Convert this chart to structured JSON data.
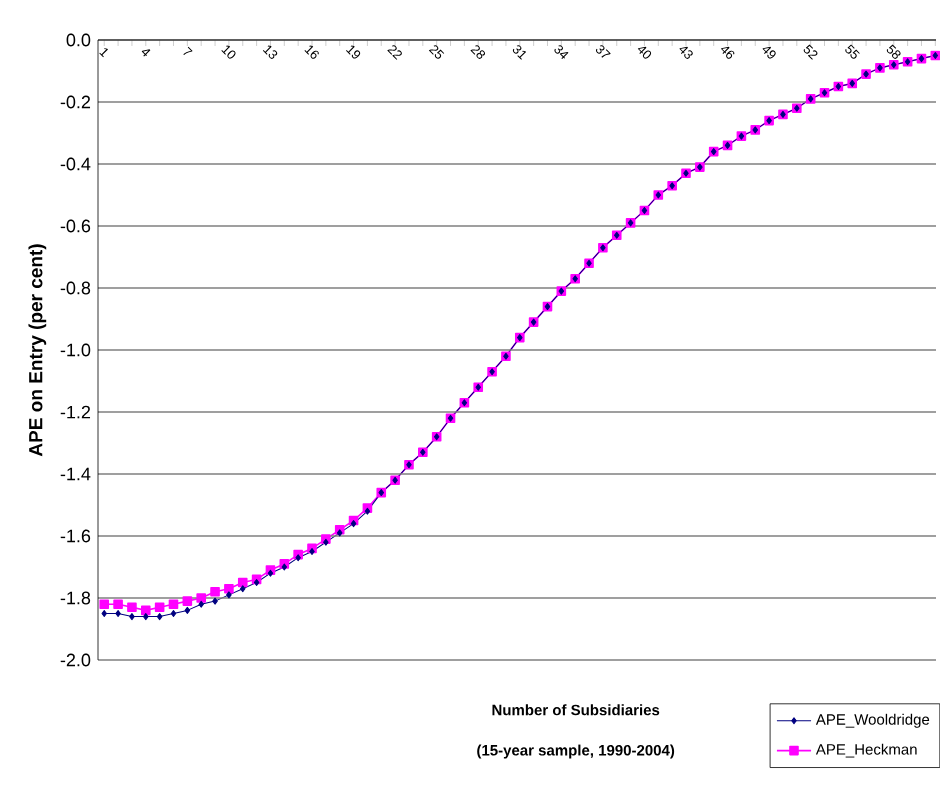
{
  "chart_data": {
    "type": "line",
    "xlabel": "Number of Subsidiaries",
    "ylabel": "APE on Entry (per cent)",
    "annotations": [
      "(15-year sample, 1990-2004)"
    ],
    "categories": [
      "1",
      null,
      null,
      "4",
      null,
      null,
      "7",
      null,
      null,
      "10",
      null,
      null,
      "13",
      null,
      null,
      "16",
      null,
      null,
      "19",
      null,
      null,
      "22",
      null,
      null,
      "25",
      null,
      null,
      "28",
      null,
      null,
      "31",
      null,
      null,
      "34",
      null,
      null,
      "37",
      null,
      null,
      "40",
      null,
      null,
      "43",
      null,
      null,
      "46",
      null,
      null,
      "49",
      null,
      null,
      "52",
      null,
      null,
      "55",
      null,
      null,
      "58",
      null,
      null,
      null
    ],
    "series": [
      {
        "name": "APE_Wooldridge",
        "color": "#000080",
        "marker": "diamond",
        "values": [
          -1.85,
          -1.85,
          -1.86,
          -1.86,
          -1.86,
          -1.85,
          -1.84,
          -1.82,
          -1.81,
          -1.79,
          -1.77,
          -1.75,
          -1.72,
          -1.7,
          -1.67,
          -1.65,
          -1.62,
          -1.59,
          -1.56,
          -1.52,
          -1.46,
          -1.42,
          -1.37,
          -1.33,
          -1.28,
          -1.22,
          -1.17,
          -1.12,
          -1.07,
          -1.02,
          -0.96,
          -0.91,
          -0.86,
          -0.81,
          -0.77,
          -0.72,
          -0.67,
          -0.63,
          -0.59,
          -0.55,
          -0.5,
          -0.47,
          -0.43,
          -0.41,
          -0.36,
          -0.34,
          -0.31,
          -0.29,
          -0.26,
          -0.24,
          -0.22,
          -0.19,
          -0.17,
          -0.15,
          -0.14,
          -0.11,
          -0.09,
          -0.08,
          -0.07,
          -0.06,
          -0.05
        ]
      },
      {
        "name": "APE_Heckman",
        "color": "#ff00ff",
        "marker": "square",
        "values": [
          -1.82,
          -1.82,
          -1.83,
          -1.84,
          -1.83,
          -1.82,
          -1.81,
          -1.8,
          -1.78,
          -1.77,
          -1.75,
          -1.74,
          -1.71,
          -1.69,
          -1.66,
          -1.64,
          -1.61,
          -1.58,
          -1.55,
          -1.51,
          -1.46,
          -1.42,
          -1.37,
          -1.33,
          -1.28,
          -1.22,
          -1.17,
          -1.12,
          -1.07,
          -1.02,
          -0.96,
          -0.91,
          -0.86,
          -0.81,
          -0.77,
          -0.72,
          -0.67,
          -0.63,
          -0.59,
          -0.55,
          -0.5,
          -0.47,
          -0.43,
          -0.41,
          -0.36,
          -0.34,
          -0.31,
          -0.29,
          -0.26,
          -0.24,
          -0.22,
          -0.19,
          -0.17,
          -0.15,
          -0.14,
          -0.11,
          -0.09,
          -0.08,
          -0.07,
          -0.06,
          -0.05
        ]
      }
    ],
    "ylim": [
      -2.0,
      0.0
    ],
    "yticks": [
      {
        "value": 0.0,
        "label": "0.0"
      },
      {
        "value": -0.2,
        "label": "-0.2"
      },
      {
        "value": -0.4,
        "label": "-0.4"
      },
      {
        "value": -0.6,
        "label": "-0.6"
      },
      {
        "value": -0.8,
        "label": "-0.8"
      },
      {
        "value": -1.0,
        "label": "-1.0"
      },
      {
        "value": -1.2,
        "label": "-1.2"
      },
      {
        "value": -1.4,
        "label": "-1.4"
      },
      {
        "value": -1.6,
        "label": "-1.6"
      },
      {
        "value": -1.8,
        "label": "-1.8"
      },
      {
        "value": -2.0,
        "label": "-2.0"
      }
    ],
    "grid": "y",
    "legend": "bottom right"
  }
}
